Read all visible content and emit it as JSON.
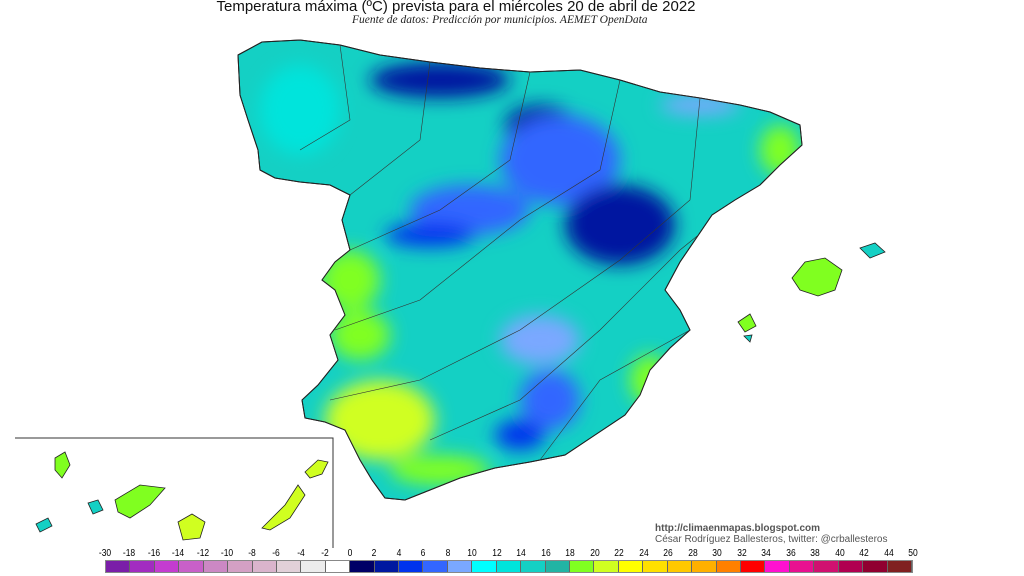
{
  "header": {
    "title": "Temperatura máxima (ºC) prevista para el miércoles 20 de abril de 2022",
    "subtitle": "Fuente de datos: Predicción por municipios. AEMET OpenData"
  },
  "credits": {
    "url": "http://climaenmapas.blogspot.com",
    "author": "César Rodríguez Ballesteros, twitter: @crballesteros"
  },
  "legend": {
    "unit": "ºC",
    "labels": [
      "-30",
      "-18",
      "-16",
      "-14",
      "-12",
      "-10",
      "-8",
      "-6",
      "-4",
      "-2",
      "0",
      "2",
      "4",
      "6",
      "8",
      "10",
      "12",
      "14",
      "16",
      "18",
      "20",
      "22",
      "24",
      "26",
      "28",
      "30",
      "32",
      "34",
      "36",
      "38",
      "40",
      "42",
      "44",
      "50"
    ],
    "colors": [
      "#7a1ea8",
      "#a22cc0",
      "#c43cd0",
      "#c860c8",
      "#cc88c4",
      "#d4a0c4",
      "#dab4cc",
      "#e2d0d8",
      "#ececec",
      "#ffffff",
      "#000066",
      "#0018a0",
      "#0033ee",
      "#3366ff",
      "#7aa8ff",
      "#00ffff",
      "#00e4dc",
      "#14d0c4",
      "#22b4a4",
      "#80ff20",
      "#d0ff20",
      "#ffff00",
      "#ffe000",
      "#ffc800",
      "#ffb000",
      "#ff8000",
      "#ff0000",
      "#ff10d0",
      "#e81090",
      "#d01070",
      "#b00050",
      "#900030",
      "#802020"
    ]
  },
  "map": {
    "region": "Spain",
    "dominant_colors": {
      "low": "#0018a0",
      "mid": "#3366ff",
      "base": "#14d0c4",
      "warm": "#d0ff20",
      "green": "#80ff20"
    }
  }
}
